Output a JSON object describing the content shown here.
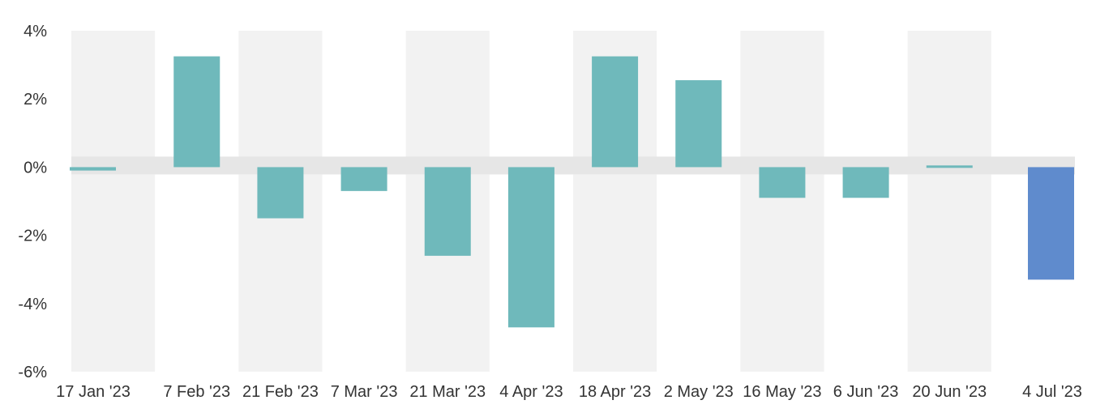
{
  "chart_data": {
    "type": "bar",
    "title": "",
    "xlabel": "",
    "ylabel": "",
    "ylim": [
      -6,
      4
    ],
    "y_ticks": [
      4,
      2,
      0,
      -2,
      -4,
      -6
    ],
    "y_tick_labels": [
      "4%",
      "2%",
      "0%",
      "-2%",
      "-4%",
      "-6%"
    ],
    "categories": [
      "17 Jan '23",
      "7 Feb '23",
      "21 Feb '23",
      "7 Mar '23",
      "21 Mar '23",
      "4 Apr '23",
      "18 Apr '23",
      "2 May '23",
      "16 May '23",
      "6 Jun '23",
      "20 Jun '23",
      "4 Jul '23"
    ],
    "values": [
      -0.1,
      3.25,
      -1.5,
      -0.7,
      -2.6,
      -4.7,
      3.25,
      2.55,
      -0.9,
      -0.9,
      0.05,
      -3.3
    ],
    "grid": true,
    "legend": "none",
    "colors": {
      "bar": "#6fb9bb",
      "highlight_bar": "#5f8bcd",
      "band": "#f2f2f2",
      "zero_band": "#e6e6e6",
      "text": "#333333"
    },
    "highlight_index": 11
  }
}
